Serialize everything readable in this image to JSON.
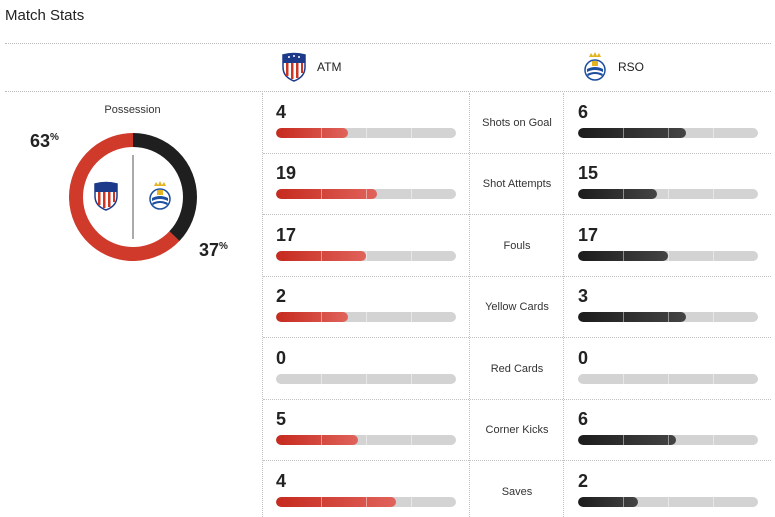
{
  "page": {
    "title": "Match Stats"
  },
  "teams": {
    "home": {
      "abbr": "ATM",
      "crest": "atletico-madrid-crest",
      "color": "#d4332a"
    },
    "away": {
      "abbr": "RSO",
      "crest": "real-sociedad-crest",
      "color": "#1f1f1f"
    }
  },
  "possession": {
    "label": "Possession",
    "home_value": "63",
    "away_value": "37",
    "unit": "%",
    "home_fraction": 0.63,
    "away_fraction": 0.37
  },
  "stats": [
    {
      "label": "Shots on Goal",
      "home": "4",
      "away": "6"
    },
    {
      "label": "Shot Attempts",
      "home": "19",
      "away": "15"
    },
    {
      "label": "Fouls",
      "home": "17",
      "away": "17"
    },
    {
      "label": "Yellow Cards",
      "home": "2",
      "away": "3"
    },
    {
      "label": "Red Cards",
      "home": "0",
      "away": "0"
    },
    {
      "label": "Corner Kicks",
      "home": "5",
      "away": "6"
    },
    {
      "label": "Saves",
      "home": "4",
      "away": "2"
    }
  ],
  "colors": {
    "home_bar": "#d4332a",
    "away_bar": "#2a2a2a",
    "track": "#d3d3d3"
  }
}
